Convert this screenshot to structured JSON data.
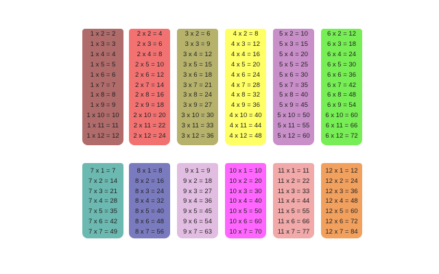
{
  "cards": [
    {
      "rows": [
        "1 x 2 = 2",
        "1 x 3 = 3",
        "1 x 4 = 4",
        "1 x 5 = 5",
        "1 x 6 = 6",
        "1 x 7 = 7",
        "1 x 8 = 8",
        "1 x 9 = 9",
        "1 x 10 = 10",
        "1 x 11 = 11",
        "1 x 12 = 12"
      ]
    },
    {
      "rows": [
        "2 x 2 = 4",
        "2 x 3 = 6",
        "2 x 4 = 8",
        "2 x 5 = 10",
        "2 x 6 = 12",
        "2 x 7 = 14",
        "2 x 8 = 16",
        "2 x 9 = 18",
        "2 x 10 = 20",
        "2 x 11 = 22",
        "2 x 12 = 24"
      ]
    },
    {
      "rows": [
        "3 x 2 = 6",
        "3 x 3 = 9",
        "3 x 4 = 12",
        "3 x 5 = 15",
        "3 x 6 = 18",
        "3 x 7 = 21",
        "3 x 8 = 24",
        "3 x 9 = 27",
        "3 x 10 = 30",
        "3 x 11 = 33",
        "3 x 12 = 36"
      ]
    },
    {
      "rows": [
        "4 x 2 = 8",
        "4 x 3 = 12",
        "4 x 4 = 16",
        "4 x 5 = 20",
        "4 x 6 = 24",
        "4 x 7 = 28",
        "4 x 8 = 32",
        "4 x 9 = 36",
        "4 x 10 = 40",
        "4 x 11 = 44",
        "4 x 12 = 48"
      ]
    },
    {
      "rows": [
        "5 x 2 = 10",
        "5 x 3 = 15",
        "5 x 4 = 20",
        "5 x 5 = 25",
        "5 x 6 = 30",
        "5 x 7 = 35",
        "5 x 8 = 40",
        "5 x 9 = 45",
        "5 x 10 = 50",
        "5 x 11 = 55",
        "5 x 12 = 60"
      ]
    },
    {
      "rows": [
        "6 x 2 = 12",
        "6 x 3 = 18",
        "6 x 4 = 24",
        "6 x 5 = 30",
        "6 x 6 = 36",
        "6 x 7 = 42",
        "6 x 8 = 48",
        "6 x 9 = 54",
        "6 x 10 = 60",
        "6 x 11 = 66",
        "6 x 12 = 72"
      ]
    },
    {
      "rows": [
        "7 x 1 = 7",
        "7 x 2 = 14",
        "7 x 3 = 21",
        "7 x 4 = 28",
        "7 x 5 = 35",
        "7 x 6 = 42",
        "7 x 7 = 49"
      ]
    },
    {
      "rows": [
        "8 x 1 = 8",
        "8 x 2 = 16",
        "8 x 3 = 24",
        "8 x 4 = 32",
        "8 x 5 = 40",
        "8 x 6 = 48",
        "8 x 7 = 56"
      ]
    },
    {
      "rows": [
        "9 x 1 = 9",
        "9 x 2 = 18",
        "9 x 3 = 27",
        "9 x 4 = 36",
        "9 x 5 = 45",
        "9 x 6 = 54",
        "9 x 7 = 63"
      ]
    },
    {
      "rows": [
        "10 x 1 = 10",
        "10 x 2 = 20",
        "10 x 3 = 30",
        "10 x 4 = 40",
        "10 x 5 = 50",
        "10 x 6 = 60",
        "10 x 7 = 70"
      ]
    },
    {
      "rows": [
        "11 x 1 = 11",
        "11 x 2 = 22",
        "11 x 3 = 33",
        "11 x 4 = 44",
        "11 x 5 = 55",
        "11 x 6 = 66",
        "11 x 7 = 77"
      ]
    },
    {
      "rows": [
        "12 x 1 = 12",
        "12 x 2 = 24",
        "12 x 3 = 36",
        "12 x 4 = 48",
        "12 x 5 = 60",
        "12 x 6 = 72",
        "12 x 7 = 84"
      ]
    }
  ]
}
